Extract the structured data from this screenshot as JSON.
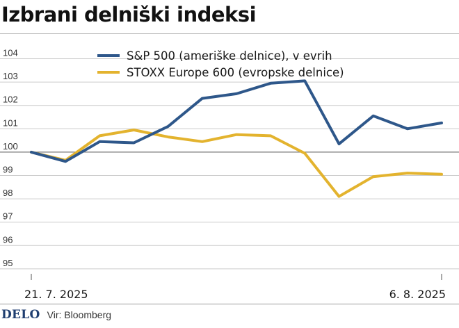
{
  "title": "Izbrani delniški indeksi",
  "colors": {
    "sp500": "#2e578a",
    "stoxx": "#e3b32e",
    "grid": "#cccccc",
    "baseline": "#777777"
  },
  "chart_data": {
    "type": "line",
    "title": "Izbrani delniški indeksi",
    "xlabel": "",
    "ylabel": "",
    "ylim": [
      95,
      104
    ],
    "yticks": [
      95,
      96,
      97,
      98,
      99,
      100,
      101,
      102,
      103,
      104
    ],
    "baseline": 100,
    "x_start_label": "21. 7. 2025",
    "x_end_label": "6. 8. 2025",
    "series": [
      {
        "name": "S&P 500 (ameriške delnice), v evrih",
        "color": "#2e578a",
        "values": [
          100.0,
          99.6,
          100.45,
          100.4,
          101.1,
          102.3,
          102.5,
          102.95,
          103.05,
          100.35,
          101.55,
          101.0,
          101.25
        ]
      },
      {
        "name": "STOXX Europe 600 (evropske delnice)",
        "color": "#e3b32e",
        "values": [
          100.0,
          99.65,
          100.7,
          100.95,
          100.65,
          100.45,
          100.75,
          100.7,
          99.95,
          98.1,
          98.95,
          99.1,
          99.05
        ]
      }
    ]
  },
  "legend": {
    "sp500": "S&P 500 (ameriške delnice), v evrih",
    "stoxx": "STOXX Europe 600 (evropske delnice)"
  },
  "footer": {
    "logo": "DELO",
    "source": "Vir: Bloomberg"
  }
}
